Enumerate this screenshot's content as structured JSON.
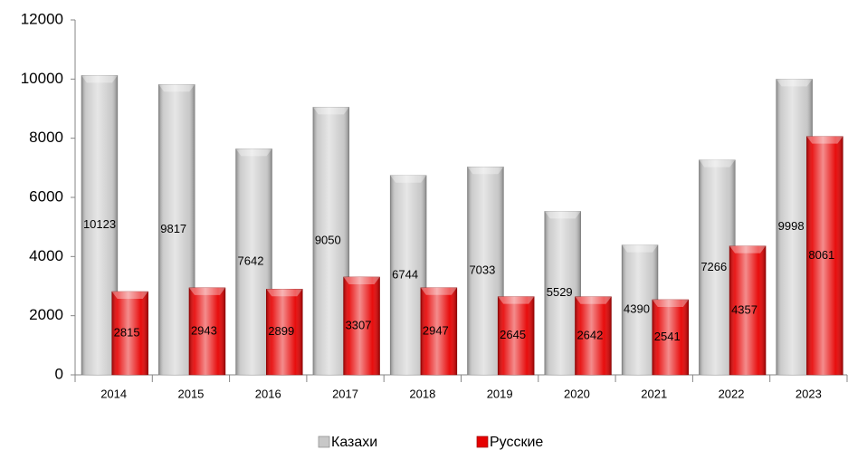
{
  "chart_data": {
    "type": "bar",
    "categories": [
      "2014",
      "2015",
      "2016",
      "2017",
      "2018",
      "2019",
      "2020",
      "2021",
      "2022",
      "2023"
    ],
    "series": [
      {
        "name": "Казахи",
        "color": "#c8c8c8",
        "values": [
          10123,
          9817,
          7642,
          9050,
          6744,
          7033,
          5529,
          4390,
          7266,
          9998
        ]
      },
      {
        "name": "Русские",
        "color": "#e60000",
        "values": [
          2815,
          2943,
          2899,
          3307,
          2947,
          2645,
          2642,
          2541,
          4357,
          8061
        ]
      }
    ],
    "ylim": [
      0,
      12000
    ],
    "yticks": [
      0,
      2000,
      4000,
      6000,
      8000,
      10000,
      12000
    ],
    "grid": false,
    "legend": "bottom",
    "data_labels": true
  }
}
